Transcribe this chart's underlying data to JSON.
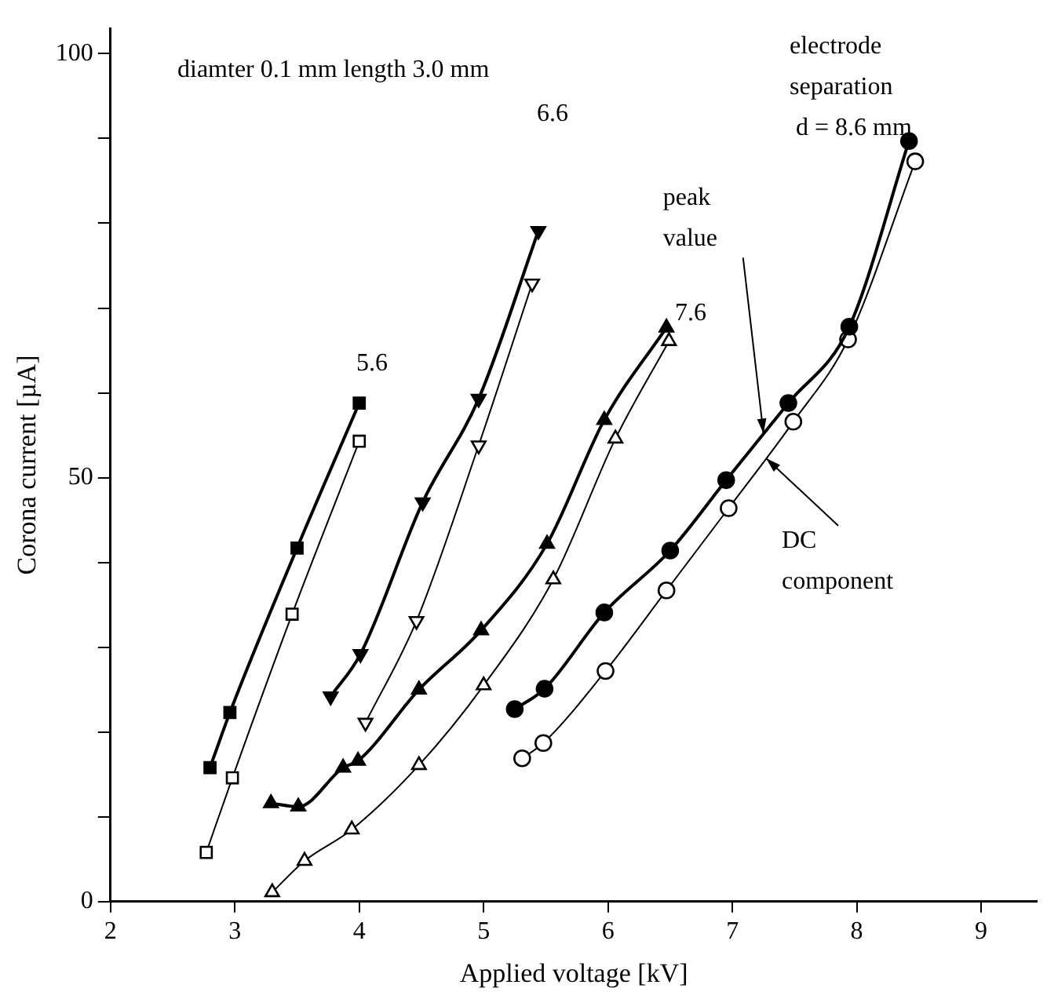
{
  "chart_data": {
    "type": "line",
    "xlabel": "Applied voltage [kV]",
    "ylabel": "Corona current [µA]",
    "xlim": [
      2,
      9.45
    ],
    "xticks": [
      2,
      3,
      4,
      5,
      6,
      7,
      8,
      9
    ],
    "ylim": [
      0,
      103
    ],
    "yticks": [
      0,
      {
        "value": 10,
        "label": null
      },
      {
        "value": 20,
        "label": null
      },
      {
        "value": 30,
        "label": null
      },
      {
        "value": 40,
        "label": null
      },
      50,
      {
        "value": 60,
        "label": null
      },
      {
        "value": 70,
        "label": null
      },
      {
        "value": 80,
        "label": null
      },
      {
        "value": 90,
        "label": null
      },
      100
    ],
    "grid": false,
    "legend": false,
    "line_style": "solid",
    "series": [
      {
        "color": "#000000",
        "marker": "square",
        "x": [
          2.8,
          2.96,
          3.5,
          4.0
        ],
        "values": [
          15.8,
          22.3,
          41.7,
          58.8
        ]
      },
      {
        "color": "#000000",
        "marker": "square",
        "x": [
          2.77,
          2.98,
          3.46,
          4.0
        ],
        "values": [
          5.8,
          14.6,
          33.9,
          54.3
        ]
      },
      {
        "color": "#000000",
        "marker": "triangle_down",
        "x": [
          3.77,
          4.01,
          4.51,
          4.96,
          5.44
        ],
        "values": [
          24.2,
          29.2,
          47.1,
          59.3,
          79.1
        ]
      },
      {
        "color": "#000000",
        "marker": "triangle_down",
        "x": [
          4.05,
          4.46,
          4.96,
          5.39
        ],
        "values": [
          21.1,
          33.1,
          53.8,
          72.9
        ]
      },
      {
        "color": "#000000",
        "marker": "triangle",
        "x": [
          3.29,
          3.51,
          3.87,
          3.99,
          4.48,
          4.98,
          5.51,
          5.97,
          6.47
        ],
        "values": [
          11.6,
          11.2,
          15.8,
          16.6,
          25.0,
          32.0,
          42.2,
          56.8,
          67.7
        ]
      },
      {
        "color": "#000000",
        "marker": "triangle",
        "x": [
          3.3,
          3.56,
          3.94,
          4.48,
          5.0,
          5.56,
          6.06,
          6.49
        ],
        "values": [
          1.1,
          4.8,
          8.5,
          16.1,
          25.5,
          38.0,
          54.6,
          66.1
        ]
      },
      {
        "color": "#000000",
        "marker": "circle",
        "x": [
          5.25,
          5.49,
          5.97,
          6.5,
          6.95,
          7.45,
          7.94,
          8.42
        ],
        "values": [
          22.7,
          25.1,
          34.1,
          41.4,
          49.7,
          58.8,
          67.8,
          89.7
        ]
      },
      {
        "color": "#000000",
        "marker": "circle",
        "x": [
          5.31,
          5.48,
          5.98,
          6.47,
          6.97,
          7.49,
          7.93,
          8.47
        ],
        "values": [
          16.9,
          18.7,
          27.2,
          36.7,
          46.4,
          56.6,
          66.3,
          87.3
        ]
      }
    ],
    "annotations": [
      "diamter 0.1 mm length 3.0 mm",
      "electrode\nseparation\n d = 8.6 mm",
      "5.6",
      "6.6",
      "7.6",
      {
        "text": "peak\nvalue",
        "x": 7.25,
        "y": 55.2
      },
      {
        "text": "DC\ncomponent",
        "x": 7.27,
        "y": 52.3
      }
    ]
  }
}
